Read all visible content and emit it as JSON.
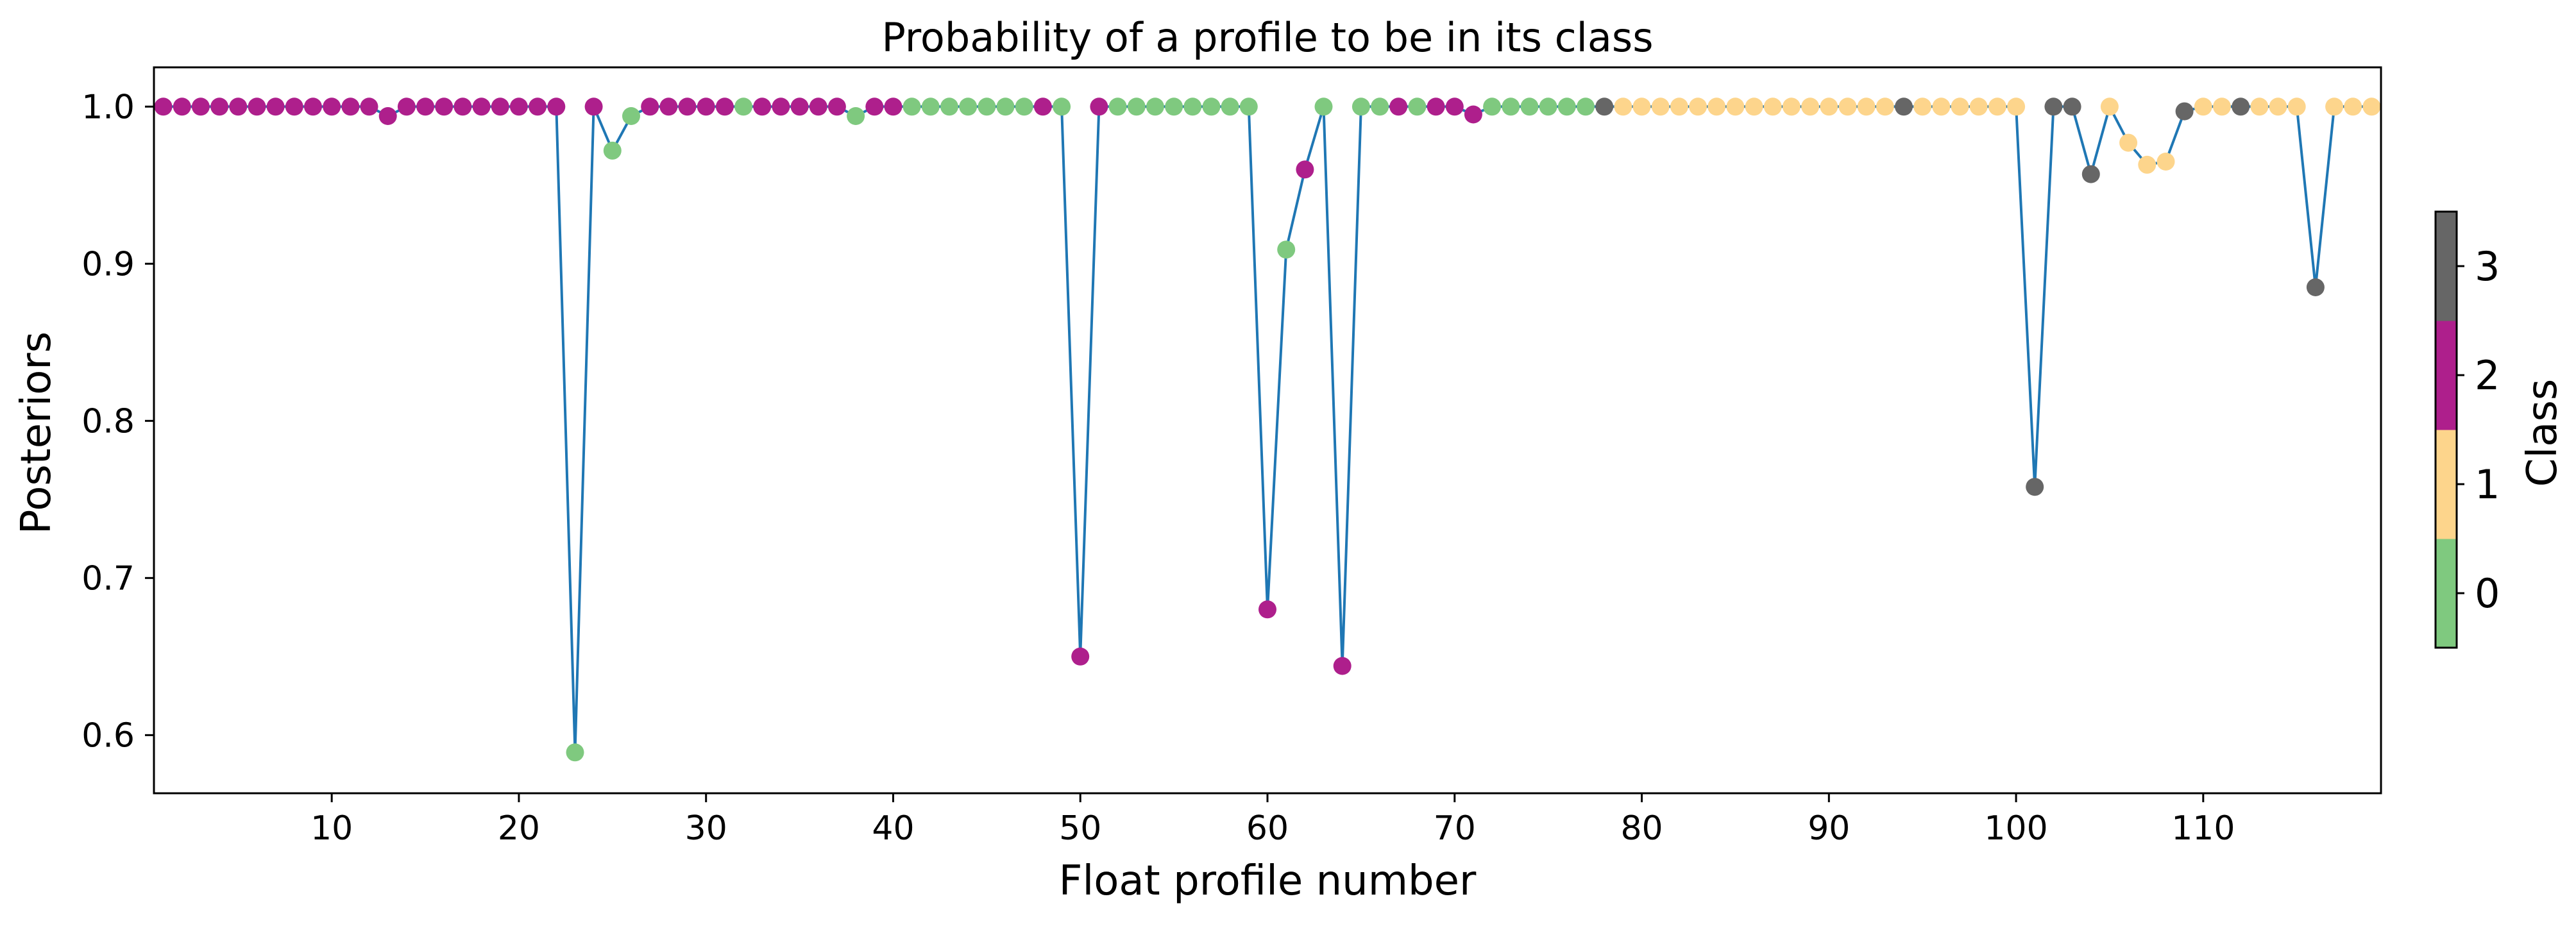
{
  "chart_data": {
    "type": "scatter",
    "title": "Probability of a profile to be in its class",
    "xlabel": "Float profile number",
    "ylabel": "Posteriors",
    "xlim": [
      0.5,
      119.5
    ],
    "ylim": [
      0.563,
      1.025
    ],
    "x_ticks": [
      10,
      20,
      30,
      40,
      50,
      60,
      70,
      80,
      90,
      100,
      110
    ],
    "y_ticks": [
      0.6,
      0.7,
      0.8,
      0.9,
      1.0
    ],
    "x_tick_labels": [
      "10",
      "20",
      "30",
      "40",
      "50",
      "60",
      "70",
      "80",
      "90",
      "100",
      "110"
    ],
    "y_tick_labels": [
      "0.6",
      "0.7",
      "0.8",
      "0.9",
      "1.0"
    ],
    "line_color": "#1f77b4",
    "grid": false,
    "legend": "none",
    "colorbar": {
      "label": "Class",
      "ticks": [
        0,
        1,
        2,
        3
      ],
      "tick_labels": [
        "0",
        "1",
        "2",
        "3"
      ],
      "colors": [
        "#7fc97f",
        "#fdd58c",
        "#ae1f8c",
        "#666666"
      ],
      "placement": "right"
    },
    "points": {
      "x": [
        1,
        2,
        3,
        4,
        5,
        6,
        7,
        8,
        9,
        10,
        11,
        12,
        13,
        14,
        15,
        16,
        17,
        18,
        19,
        20,
        21,
        22,
        23,
        24,
        25,
        26,
        27,
        28,
        29,
        30,
        31,
        32,
        33,
        34,
        35,
        36,
        37,
        38,
        39,
        40,
        41,
        42,
        43,
        44,
        45,
        46,
        47,
        48,
        49,
        50,
        51,
        52,
        53,
        54,
        55,
        56,
        57,
        58,
        59,
        60,
        61,
        62,
        63,
        64,
        65,
        66,
        67,
        68,
        69,
        70,
        71,
        72,
        73,
        74,
        75,
        76,
        77,
        78,
        79,
        80,
        81,
        82,
        83,
        84,
        85,
        86,
        87,
        88,
        89,
        90,
        91,
        92,
        93,
        94,
        95,
        96,
        97,
        98,
        99,
        100,
        101,
        102,
        103,
        104,
        105,
        106,
        107,
        108,
        109,
        110,
        111,
        112,
        113,
        114,
        115,
        116,
        117,
        118,
        119
      ],
      "y": [
        1.0,
        1.0,
        1.0,
        1.0,
        1.0,
        1.0,
        1.0,
        1.0,
        1.0,
        1.0,
        1.0,
        1.0,
        0.994,
        1.0,
        1.0,
        1.0,
        1.0,
        1.0,
        1.0,
        1.0,
        1.0,
        1.0,
        0.589,
        1.0,
        0.972,
        0.994,
        1.0,
        1.0,
        1.0,
        1.0,
        1.0,
        1.0,
        1.0,
        1.0,
        1.0,
        1.0,
        1.0,
        0.994,
        1.0,
        1.0,
        1.0,
        1.0,
        1.0,
        1.0,
        1.0,
        1.0,
        1.0,
        1.0,
        1.0,
        0.65,
        1.0,
        1.0,
        1.0,
        1.0,
        1.0,
        1.0,
        1.0,
        1.0,
        1.0,
        0.68,
        0.909,
        0.96,
        1.0,
        0.644,
        1.0,
        1.0,
        1.0,
        1.0,
        1.0,
        1.0,
        0.995,
        1.0,
        1.0,
        1.0,
        1.0,
        1.0,
        1.0,
        1.0,
        1.0,
        1.0,
        1.0,
        1.0,
        1.0,
        1.0,
        1.0,
        1.0,
        1.0,
        1.0,
        1.0,
        1.0,
        1.0,
        1.0,
        1.0,
        1.0,
        1.0,
        1.0,
        1.0,
        1.0,
        1.0,
        1.0,
        0.758,
        1.0,
        1.0,
        0.957,
        1.0,
        0.977,
        0.963,
        0.965,
        0.997,
        1.0,
        1.0,
        1.0,
        1.0,
        1.0,
        1.0,
        0.885,
        1.0,
        1.0,
        1.0
      ],
      "class": [
        2,
        2,
        2,
        2,
        2,
        2,
        2,
        2,
        2,
        2,
        2,
        2,
        2,
        2,
        2,
        2,
        2,
        2,
        2,
        2,
        2,
        2,
        0,
        2,
        0,
        0,
        2,
        2,
        2,
        2,
        2,
        0,
        2,
        2,
        2,
        2,
        2,
        0,
        2,
        2,
        0,
        0,
        0,
        0,
        0,
        0,
        0,
        2,
        0,
        2,
        2,
        0,
        0,
        0,
        0,
        0,
        0,
        0,
        0,
        2,
        0,
        2,
        0,
        2,
        0,
        0,
        2,
        0,
        2,
        2,
        2,
        0,
        0,
        0,
        0,
        0,
        0,
        3,
        1,
        1,
        1,
        1,
        1,
        1,
        1,
        1,
        1,
        1,
        1,
        1,
        1,
        1,
        1,
        3,
        1,
        1,
        1,
        1,
        1,
        1,
        3,
        3,
        3,
        3,
        1,
        1,
        1,
        1,
        3,
        1,
        1,
        3,
        1,
        1,
        1,
        3,
        1,
        1,
        1
      ]
    }
  }
}
